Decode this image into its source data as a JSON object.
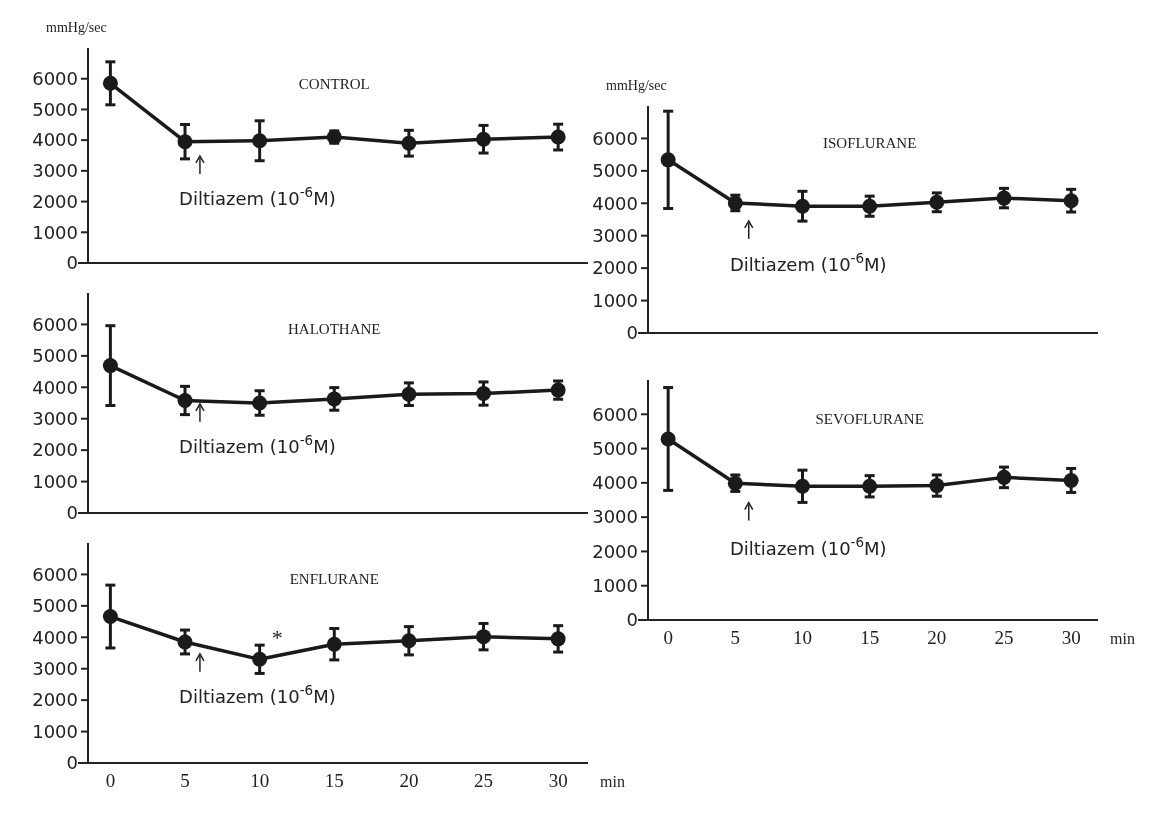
{
  "chart_data": [
    {
      "type": "line",
      "title": "CONTROL",
      "ylabel": "mmHg/sec",
      "x": [
        0,
        5,
        10,
        15,
        20,
        25,
        30
      ],
      "xlim": [
        -1.5,
        32
      ],
      "ylim": [
        0,
        7000
      ],
      "yticks": [
        0,
        1000,
        2000,
        3000,
        4000,
        5000,
        6000
      ],
      "tick_labels": "y",
      "marker": "circle",
      "line_style": "solid",
      "series": [
        {
          "color": "#1a1a1a",
          "values": [
            5850,
            3950,
            3980,
            4100,
            3900,
            4030,
            4100
          ],
          "errors": [
            700,
            560,
            650,
            200,
            420,
            450,
            420
          ]
        }
      ],
      "annotations": [
        "Diltiazem (10$^{-6}$M)"
      ]
    },
    {
      "type": "line",
      "title": "HALOTHANE",
      "x": [
        0,
        5,
        10,
        15,
        20,
        25,
        30
      ],
      "xlim": [
        -1.5,
        32
      ],
      "ylim": [
        0,
        7000
      ],
      "yticks": [
        0,
        1000,
        2000,
        3000,
        4000,
        5000,
        6000
      ],
      "tick_labels": "y",
      "marker": "circle",
      "line_style": "solid",
      "series": [
        {
          "color": "#1a1a1a",
          "values": [
            4690,
            3580,
            3500,
            3630,
            3780,
            3800,
            3910
          ],
          "errors": [
            1270,
            450,
            390,
            360,
            360,
            370,
            290
          ]
        }
      ],
      "annotations": [
        "Diltiazem (10$^{-6}$M)"
      ]
    },
    {
      "type": "line",
      "title": "ENFLURANE",
      "xlabel": "min",
      "x": [
        0,
        5,
        10,
        15,
        20,
        25,
        30
      ],
      "xlim": [
        -1.5,
        32
      ],
      "xticks": [
        0,
        5,
        10,
        15,
        20,
        25,
        30
      ],
      "ylim": [
        0,
        7000
      ],
      "yticks": [
        0,
        1000,
        2000,
        3000,
        4000,
        5000,
        6000
      ],
      "marker": "circle",
      "line_style": "solid",
      "series": [
        {
          "color": "#1a1a1a",
          "values": [
            4660,
            3850,
            3300,
            3780,
            3890,
            4020,
            3950
          ],
          "errors": [
            1000,
            380,
            450,
            500,
            450,
            420,
            420
          ]
        }
      ],
      "annotations": [
        "Diltiazem (10$^{-6}$M)",
        {
          "text": "*",
          "x": 10,
          "y": 3300
        }
      ]
    },
    {
      "type": "line",
      "title": "ISOFLURANE",
      "ylabel": "mmHg/sec",
      "x": [
        0,
        5,
        10,
        15,
        20,
        25,
        30
      ],
      "xlim": [
        -1.5,
        32
      ],
      "ylim": [
        0,
        7000
      ],
      "yticks": [
        0,
        1000,
        2000,
        3000,
        4000,
        5000,
        6000
      ],
      "tick_labels": "y",
      "marker": "circle",
      "line_style": "solid",
      "series": [
        {
          "color": "#1a1a1a",
          "values": [
            5340,
            4010,
            3910,
            3910,
            4030,
            4160,
            4080
          ],
          "errors": [
            1500,
            240,
            460,
            310,
            290,
            300,
            350
          ]
        }
      ],
      "annotations": [
        "Diltiazem (10$^{-6}$M)"
      ]
    },
    {
      "type": "line",
      "title": "SEVOFLURANE",
      "xlabel": "min",
      "x": [
        0,
        5,
        10,
        15,
        20,
        25,
        30
      ],
      "xlim": [
        -1.5,
        32
      ],
      "xticks": [
        0,
        5,
        10,
        15,
        20,
        25,
        30
      ],
      "ylim": [
        0,
        7000
      ],
      "yticks": [
        0,
        1000,
        2000,
        3000,
        4000,
        5000,
        6000
      ],
      "marker": "circle",
      "line_style": "solid",
      "series": [
        {
          "color": "#1a1a1a",
          "values": [
            5280,
            3990,
            3900,
            3900,
            3920,
            4160,
            4070
          ],
          "errors": [
            1500,
            240,
            470,
            310,
            310,
            300,
            350
          ]
        }
      ],
      "annotations": [
        "Diltiazem (10$^{-6}$M)"
      ]
    }
  ]
}
